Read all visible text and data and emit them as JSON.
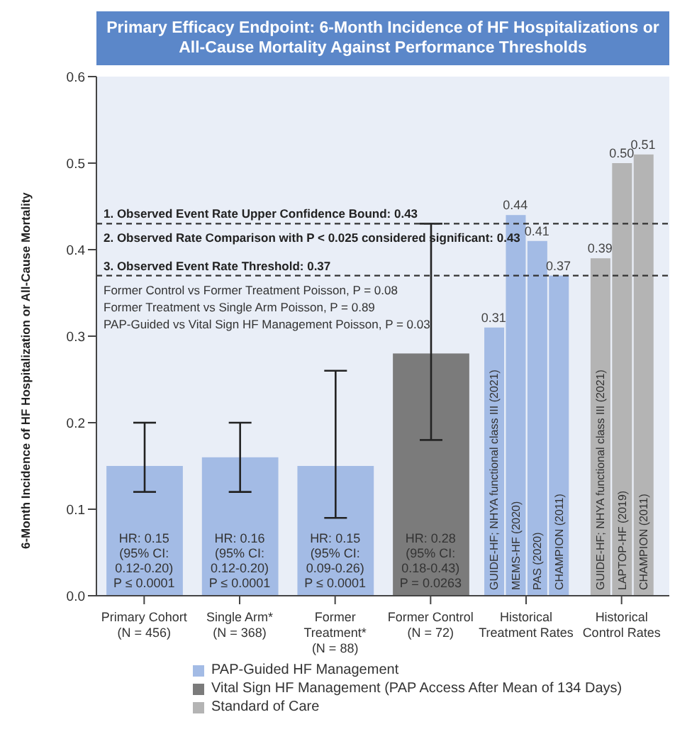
{
  "chart_data": {
    "type": "bar",
    "title": "Primary Efficacy Endpoint: 6-Month Incidence of HF Hospitalizations or All-Cause Mortality Against Performance Thresholds",
    "ylabel": "6-Month Incidence of HF Hospitalization or All-Cause Mortality",
    "categories": [
      "Primary Cohort (N = 456)",
      "Single Arm* (N = 368)",
      "Former Treatment* (N = 88)",
      "Former Control (N = 72)",
      "Historical Treatment Rates",
      "Historical Control Rates"
    ],
    "series": [
      {
        "name": "PAP-Guided HF Management",
        "color": "#a3bbe5",
        "values": [
          0.15,
          0.16,
          0.15,
          null,
          null,
          null
        ],
        "errors": [
          [
            0.12,
            0.2
          ],
          [
            0.12,
            0.2
          ],
          [
            0.09,
            0.26
          ],
          null,
          null,
          null
        ]
      },
      {
        "name": "Vital Sign HF Management (PAP Access After Mean of 134 Days)",
        "color": "#7b7b7b",
        "values": [
          null,
          null,
          null,
          0.28,
          null,
          null
        ],
        "errors": [
          null,
          null,
          null,
          [
            0.18,
            0.43
          ],
          null,
          null
        ]
      },
      {
        "name": "Standard of Care",
        "color": "#b4b4b4",
        "values": [
          null,
          null,
          null,
          null,
          null,
          null
        ]
      },
      {
        "name": "GUIDE-HF; NHYA functional class III (2021)",
        "color": "#a3bbe5",
        "values": [
          null,
          null,
          null,
          null,
          0.31,
          null
        ],
        "value_labels": [
          null,
          null,
          null,
          null,
          "0.31",
          null
        ]
      },
      {
        "name": "MEMS-HF (2020)",
        "color": "#a3bbe5",
        "values": [
          null,
          null,
          null,
          null,
          0.44,
          null
        ],
        "value_labels": [
          null,
          null,
          null,
          null,
          "0.44",
          null
        ]
      },
      {
        "name": "PAS (2020)",
        "color": "#a3bbe5",
        "values": [
          null,
          null,
          null,
          null,
          0.41,
          null
        ],
        "value_labels": [
          null,
          null,
          null,
          null,
          "0.41",
          null
        ]
      },
      {
        "name": "CHAMPION (2011)",
        "color": "#a3bbe5",
        "values": [
          null,
          null,
          null,
          null,
          0.37,
          null
        ],
        "value_labels": [
          null,
          null,
          null,
          null,
          "0.37",
          null
        ]
      },
      {
        "name": "GUIDE-HF; NHYA functional class III (2021)",
        "color": "#b4b4b4",
        "values": [
          null,
          null,
          null,
          null,
          null,
          0.39
        ],
        "value_labels": [
          null,
          null,
          null,
          null,
          null,
          "0.39"
        ]
      },
      {
        "name": "LAPTOP-HF (2019)",
        "color": "#b4b4b4",
        "values": [
          null,
          null,
          null,
          null,
          null,
          0.5
        ],
        "value_labels": [
          null,
          null,
          null,
          null,
          null,
          "0.50"
        ]
      },
      {
        "name": "CHAMPION (2011)",
        "color": "#b4b4b4",
        "values": [
          null,
          null,
          null,
          null,
          null,
          0.51
        ],
        "value_labels": [
          null,
          null,
          null,
          null,
          null,
          "0.51"
        ]
      }
    ],
    "ylim": [
      0,
      0.6
    ],
    "yticks": [
      {
        "value": 0,
        "label": "0.0"
      },
      0.1,
      0.2,
      0.3,
      0.4,
      0.5,
      0.6
    ],
    "ref_lines": [
      {
        "axis": "y",
        "value": 0.43,
        "label": "1. Observed Event Rate Upper Confidence Bound: 0.43\n2. Observed Rate Comparison with P < 0.025 considered significant: 0.43",
        "line_style": "dashed",
        "color": "#333333"
      },
      {
        "axis": "y",
        "value": 0.37,
        "label": "3. Observed Event Rate Threshold: 0.37",
        "line_style": "dashed",
        "color": "#333333"
      }
    ],
    "annotations": [
      "Former Control vs Former Treatment Poisson, P = 0.08",
      "Former Treatment vs Single Arm Poisson, P = 0.89",
      "PAP-Guided vs Vital Sign HF Management Poisson, P = 0.03",
      "HR: 0.15\n(95% CI:\n0.12-0.20)\nP ≤ 0.0001",
      "HR: 0.16\n(95% CI:\n0.12-0.20)\nP ≤ 0.0001",
      "HR: 0.15\n(95% CI:\n0.09-0.26)\nP ≤ 0.0001",
      "HR: 0.28\n(95% CI:\n0.18-0.43)\nP = 0.0263"
    ],
    "grid": false,
    "legend": "bottom"
  }
}
